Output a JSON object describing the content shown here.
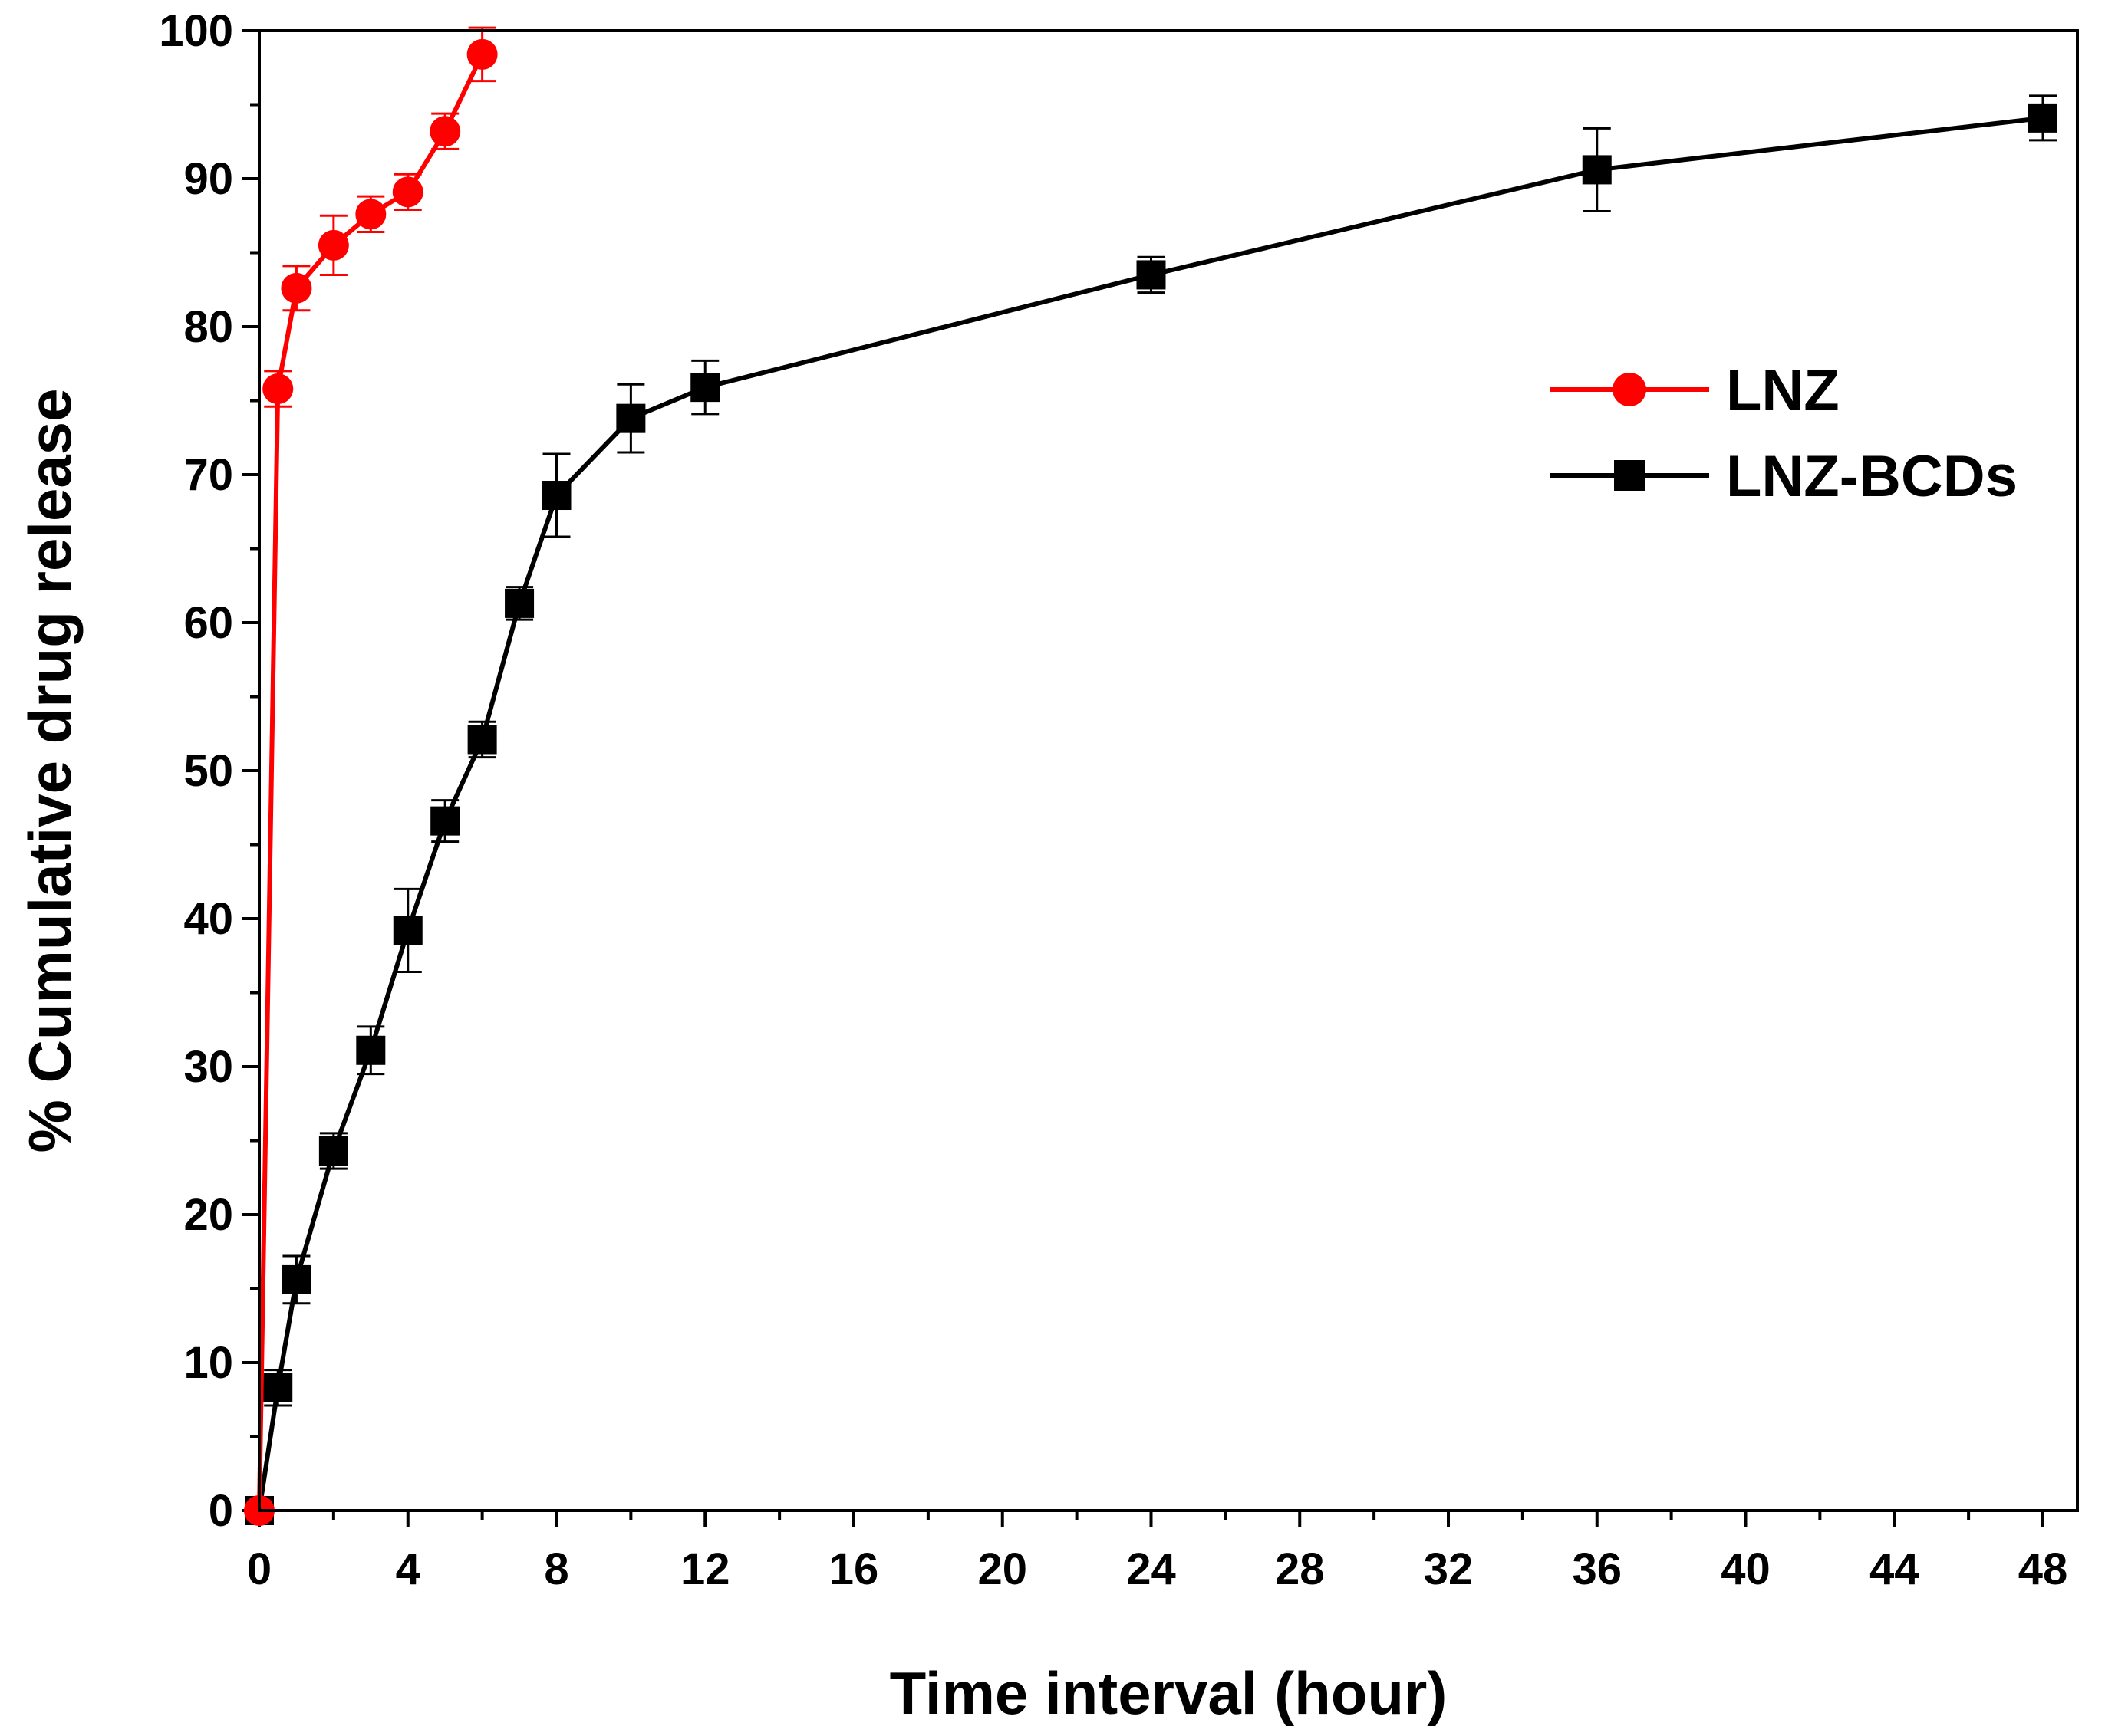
{
  "chart_data": {
    "type": "line",
    "title": "",
    "xlabel": "Time interval (hour)",
    "ylabel": "% Cumulative drug release",
    "xlim": [
      0,
      49
    ],
    "ylim": [
      0,
      100
    ],
    "xticks": [
      0,
      4,
      8,
      12,
      16,
      20,
      24,
      28,
      32,
      36,
      40,
      44,
      48
    ],
    "yticks": [
      0,
      10,
      20,
      30,
      40,
      50,
      60,
      70,
      80,
      90,
      100
    ],
    "legend_position": "right",
    "series": [
      {
        "name": "LNZ",
        "color": "#ff0000",
        "marker": "circle",
        "x": [
          0,
          0.5,
          1,
          2,
          3,
          4,
          5,
          6
        ],
        "y": [
          0,
          75.8,
          82.6,
          85.5,
          87.6,
          89.1,
          93.2,
          98.4
        ],
        "err": [
          0,
          1.2,
          1.5,
          2.0,
          1.2,
          1.2,
          1.2,
          1.8
        ]
      },
      {
        "name": "LNZ-BCDs",
        "color": "#000000",
        "marker": "square",
        "x": [
          0,
          0.5,
          1,
          2,
          3,
          4,
          5,
          6,
          7,
          8,
          10,
          12,
          24,
          36,
          48
        ],
        "y": [
          0,
          8.3,
          15.6,
          24.3,
          31.1,
          39.2,
          46.6,
          52.1,
          61.3,
          68.6,
          73.8,
          75.9,
          83.5,
          90.6,
          94.1
        ],
        "err": [
          0,
          1.2,
          1.6,
          1.2,
          1.6,
          2.8,
          1.4,
          1.2,
          1.1,
          2.8,
          2.3,
          1.8,
          1.2,
          2.8,
          1.5
        ]
      }
    ]
  }
}
